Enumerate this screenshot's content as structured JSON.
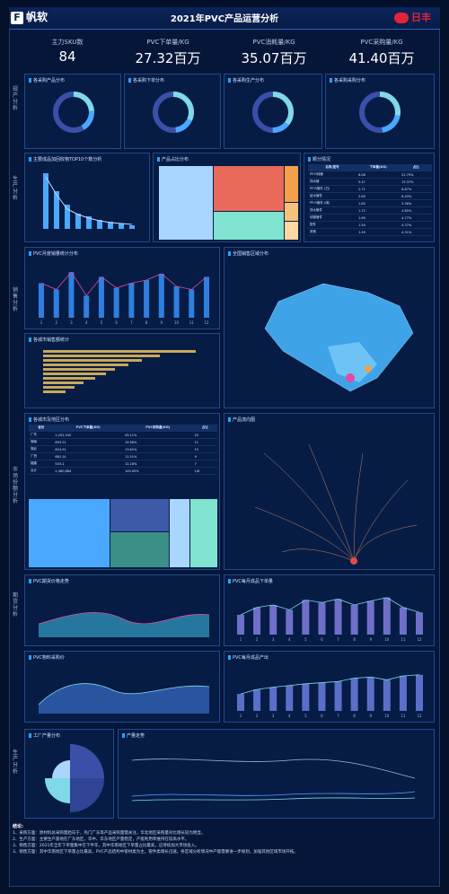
{
  "header": {
    "brand": "帆软",
    "brand_logo": "F",
    "title": "2021年PVC产品运营分析",
    "partner": "日丰"
  },
  "kpis": [
    {
      "label": "主力SKU数",
      "value": "84"
    },
    {
      "label": "PVC下单量/KG",
      "value": "27.32百万"
    },
    {
      "label": "PVC消耗量/KG",
      "value": "35.07百万"
    },
    {
      "label": "PVC采购量/KG",
      "value": "41.40百万"
    }
  ],
  "sections": {
    "s1": "规产分析",
    "s2": "生产分析",
    "s3": "销售分析",
    "s4": "市场份额分析",
    "s5": "期货分析",
    "s6": "生产分析"
  },
  "donuts": [
    {
      "title": "各采购产品分布",
      "colors": [
        "#3a4fa8",
        "#7fd9e8",
        "#4aa8ff"
      ]
    },
    {
      "title": "各采购下单分布",
      "colors": [
        "#3a4fa8",
        "#7fd9e8",
        "#4aa8ff"
      ]
    },
    {
      "title": "各采购生产分布",
      "colors": [
        "#3a4fa8",
        "#7fd9e8",
        "#4aa8ff"
      ]
    },
    {
      "title": "各采购采购分布",
      "colors": [
        "#3a4fa8",
        "#7fd9e8",
        "#4aa8ff"
      ]
    }
  ],
  "panels": {
    "p_bar1": "主要成品加回收物TOP10个数分析",
    "p_tree1": "产品占比分布",
    "p_tbl1": "颗分情况",
    "p_line1": "PVC月度销量统计分布",
    "p_map1": "全国销售区域分布",
    "p_hbar": "各城市销售额统计",
    "p_tbl2": "各城市及地区分布",
    "p_map2": "产品流向图",
    "p_area1": "PVC期货价格走势",
    "p_bar2": "PVC每月成品下单量",
    "p_area2": "PVC物料采购价",
    "p_bar3": "PVC每月成品产出",
    "p_rose": "工厂产量分布",
    "p_lines": "产量走势"
  },
  "table1": {
    "headers": [
      "名称/型号",
      "下单量(KG)",
      "占比"
    ],
    "rows": [
      [
        "PP-R纯管",
        "8.08",
        "22.75%"
      ],
      [
        "排水管",
        "5.47",
        "15.37%"
      ],
      [
        "PP-R管件 (白)",
        "2.71",
        "8.87%"
      ],
      [
        "给水管件",
        "2.60",
        "6.43%"
      ],
      [
        "PP-R管件 (绿)",
        "1.80",
        "5.58%"
      ],
      [
        "排水管件",
        "1.72",
        "4.85%"
      ],
      [
        "线管管件",
        "1.69",
        "4.77%"
      ],
      [
        "配件",
        "1.50",
        "4.37%"
      ],
      [
        "其他",
        "1.49",
        "4.31%"
      ]
    ]
  },
  "table2": {
    "headers": [
      "省份",
      "PVC下单量(KG)",
      "PVC采购量(KG)",
      "占比"
    ],
    "rows": [
      [
        "广东",
        "2,252,345",
        "43.11%",
        "25"
      ],
      [
        "湖南",
        "893.21",
        "19.56%",
        "11"
      ],
      [
        "湖北",
        "824.91",
        "13.82%",
        "15"
      ],
      [
        "广西",
        "681.14",
        "11.51%",
        "9"
      ],
      [
        "福建",
        "543.2",
        "12.18%",
        "7"
      ],
      [
        "合计",
        "2,460,884",
        "100.00%",
        "1/8"
      ]
    ]
  },
  "notes": {
    "title": "结论:",
    "lines": [
      "1、采购方面：原材料总采购量趋向于，热门广东等产品采购量需关注，华北地区采购量对比增长较为明显。",
      "2、生产方面：主要生产基地在广东地区，华中、华东地区产量稳定，产能利用率维持在较高水平。",
      "3、销售方面：2021年全年下单量集中在下半年，其中华南地区下单量占比最高，应持续加大市场投入。",
      "3、销售方面：其中华南地区下单量占比最高，PVC产品结构中管材类为主，管件类增长迅速，各区域分析情况中产能需要进一步规划，加强其他区域市场开拓。"
    ]
  },
  "chart_data": [
    {
      "type": "line",
      "title": "PVC月度销量统计分布",
      "x": [
        "1",
        "2",
        "3",
        "4",
        "5",
        "6",
        "7",
        "8",
        "9",
        "10",
        "11",
        "12"
      ],
      "series": [
        {
          "values": [
            110,
            90,
            145,
            70,
            130,
            95,
            110,
            120,
            140,
            100,
            90,
            130
          ]
        }
      ]
    },
    {
      "type": "bar",
      "title": "PVC每月成品下单量",
      "x": [
        "1",
        "2",
        "3",
        "4",
        "5",
        "6",
        "7",
        "8",
        "9",
        "10",
        "11",
        "12"
      ],
      "series": [
        {
          "values": [
            40,
            55,
            60,
            50,
            70,
            65,
            72,
            60,
            68,
            75,
            55,
            45
          ]
        }
      ]
    },
    {
      "type": "bar",
      "title": "PVC每月成品产出",
      "x": [
        "1",
        "2",
        "3",
        "4",
        "5",
        "6",
        "7",
        "8",
        "9",
        "10",
        "11",
        "12"
      ],
      "series": [
        {
          "values": [
            30,
            38,
            42,
            45,
            48,
            50,
            52,
            58,
            60,
            55,
            62,
            64
          ]
        }
      ]
    }
  ]
}
